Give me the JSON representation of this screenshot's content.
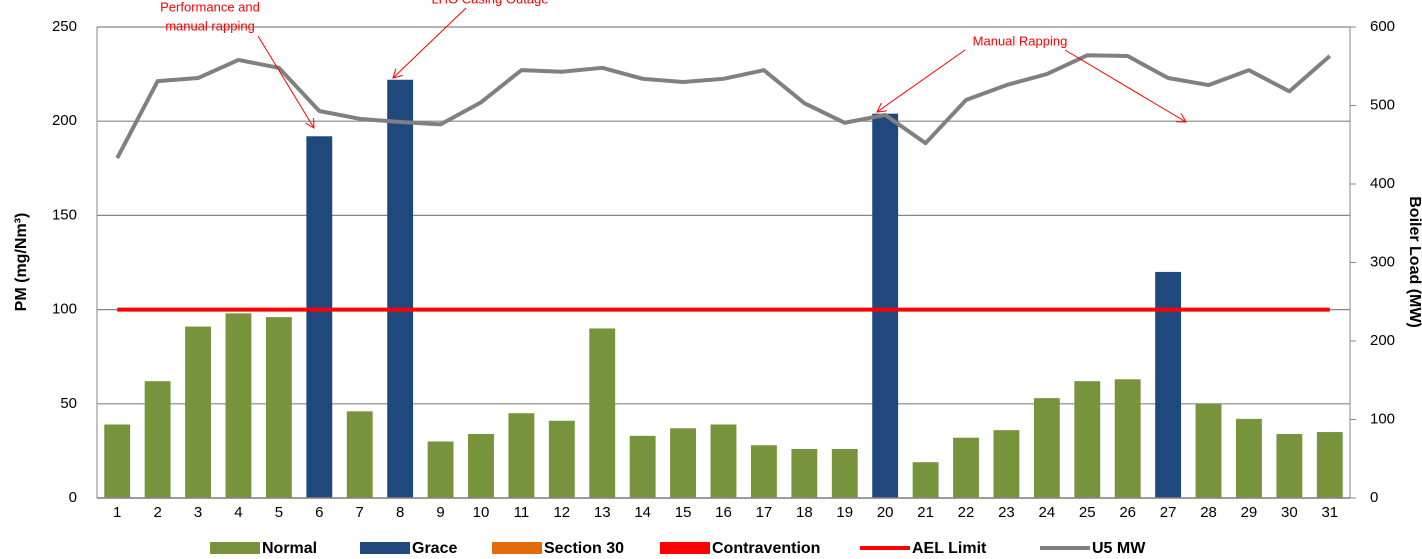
{
  "chart_data": {
    "type": "bar",
    "categories": [
      "1",
      "2",
      "3",
      "4",
      "5",
      "6",
      "7",
      "8",
      "9",
      "10",
      "11",
      "12",
      "13",
      "14",
      "15",
      "16",
      "17",
      "18",
      "19",
      "20",
      "21",
      "22",
      "23",
      "24",
      "25",
      "26",
      "27",
      "28",
      "29",
      "30",
      "31"
    ],
    "series": [
      {
        "name": "Normal",
        "type": "bar",
        "color": "#77933c",
        "values": [
          39,
          62,
          91,
          98,
          96,
          null,
          46,
          null,
          30,
          34,
          45,
          41,
          90,
          33,
          37,
          39,
          28,
          26,
          26,
          null,
          19,
          32,
          36,
          53,
          62,
          63,
          null,
          50,
          42,
          34,
          35
        ]
      },
      {
        "name": "Grace",
        "type": "bar",
        "color": "#1f497d",
        "values": [
          null,
          null,
          null,
          null,
          null,
          192,
          null,
          222,
          null,
          null,
          null,
          null,
          null,
          null,
          null,
          null,
          null,
          null,
          null,
          204,
          null,
          null,
          null,
          null,
          null,
          null,
          120,
          null,
          null,
          null,
          null
        ]
      },
      {
        "name": "Section 30",
        "type": "bar",
        "color": "#e36c09",
        "values": [
          null,
          null,
          null,
          null,
          null,
          null,
          null,
          null,
          null,
          null,
          null,
          null,
          null,
          null,
          null,
          null,
          null,
          null,
          null,
          null,
          null,
          null,
          null,
          null,
          null,
          null,
          null,
          null,
          null,
          null,
          null
        ]
      },
      {
        "name": "Contravention",
        "type": "bar",
        "color": "#ff0000",
        "values": [
          null,
          null,
          null,
          null,
          null,
          null,
          null,
          null,
          null,
          null,
          null,
          null,
          null,
          null,
          null,
          null,
          null,
          null,
          null,
          null,
          null,
          null,
          null,
          null,
          null,
          null,
          null,
          null,
          null,
          null,
          null
        ]
      },
      {
        "name": "AEL Limit",
        "type": "line",
        "color": "#ff0000",
        "values": [
          100,
          100,
          100,
          100,
          100,
          100,
          100,
          100,
          100,
          100,
          100,
          100,
          100,
          100,
          100,
          100,
          100,
          100,
          100,
          100,
          100,
          100,
          100,
          100,
          100,
          100,
          100,
          100,
          100,
          100,
          100
        ]
      },
      {
        "name": "U5 MW",
        "type": "line",
        "axis": "y2",
        "color": "#808080",
        "values": [
          433,
          531,
          535,
          558,
          548,
          493,
          483,
          479,
          476,
          504,
          545,
          543,
          548,
          534,
          530,
          534,
          545,
          503,
          478,
          488,
          452,
          507,
          526,
          540,
          564,
          563,
          535,
          526,
          545,
          518,
          563
        ]
      }
    ],
    "ylabel": "PM (mg/Nm³)",
    "y2label": "Boiler Load (MW)",
    "ylim": [
      0,
      250
    ],
    "yticks": [
      0,
      50,
      100,
      150,
      200,
      250
    ],
    "y2lim": [
      0,
      600
    ],
    "y2ticks": [
      0,
      100,
      200,
      300,
      400,
      500,
      600
    ],
    "grid": true,
    "legend": "bottom",
    "annotations": [
      [
        "Performance and",
        "manual rapping"
      ],
      [
        "LHO Casing Outage"
      ],
      [
        "Manual Rapping"
      ]
    ]
  }
}
